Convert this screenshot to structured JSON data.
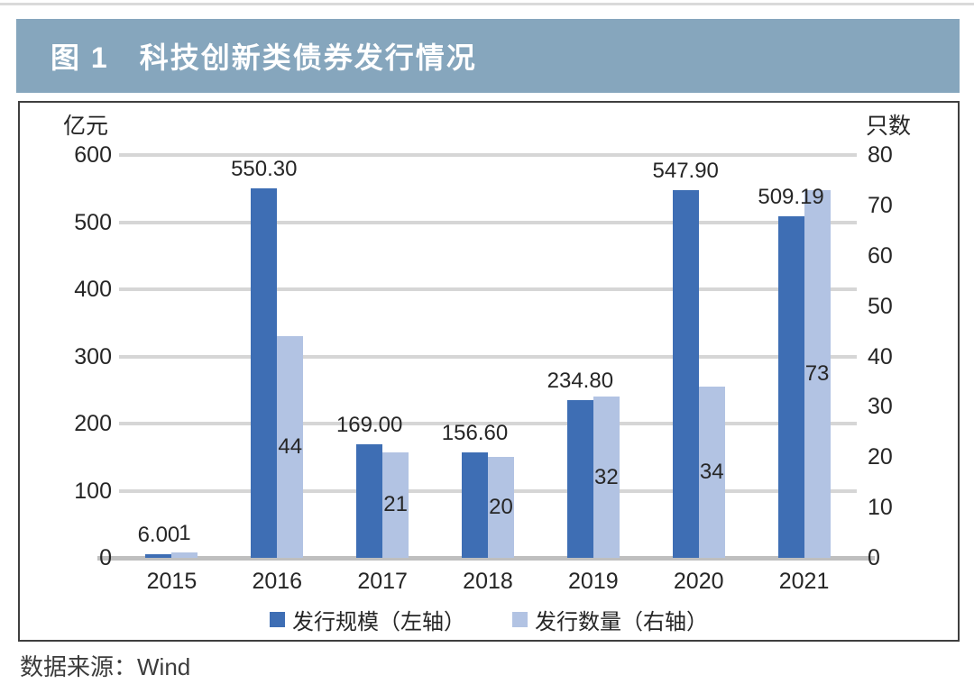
{
  "page": {
    "top_rule_color": "#dadada",
    "background": "#ffffff"
  },
  "figure": {
    "header": {
      "prefix": "图 1",
      "title": "科技创新类债券发行情况",
      "bg_color": "#86a6bd",
      "text_color": "#ffffff"
    },
    "source": "数据来源：Wind"
  },
  "chart_data": {
    "type": "bar",
    "title": "图 1 科技创新类债券发行情况",
    "categories": [
      "2015",
      "2016",
      "2017",
      "2018",
      "2019",
      "2020",
      "2021"
    ],
    "series": [
      {
        "name": "发行规模（左轴）",
        "axis": "left",
        "color": "#3e6eb4",
        "values": [
          6.0,
          550.3,
          169.0,
          156.6,
          234.8,
          547.9,
          509.19
        ],
        "labels": [
          "6.00",
          "550.30",
          "169.00",
          "156.60",
          "234.80",
          "547.90",
          "509.19"
        ]
      },
      {
        "name": "发行数量（右轴）",
        "axis": "right",
        "color": "#b2c3e3",
        "values": [
          1,
          44,
          21,
          20,
          32,
          34,
          73
        ],
        "labels": [
          "1",
          "44",
          "21",
          "20",
          "32",
          "34",
          "73"
        ]
      }
    ],
    "left_axis": {
      "title": "亿元",
      "min": 0,
      "max": 600,
      "step": 100,
      "ticks": [
        600,
        500,
        400,
        300,
        200,
        100,
        0
      ]
    },
    "right_axis": {
      "title": "只数",
      "min": 0,
      "max": 80,
      "step": 10,
      "ticks": [
        80,
        70,
        60,
        50,
        40,
        30,
        20,
        10,
        0
      ]
    },
    "grid": true,
    "gridline_color": "#d6d6d6",
    "axisline_color": "#bfbfbf",
    "legend_position": "bottom",
    "text_color": "#262626"
  }
}
